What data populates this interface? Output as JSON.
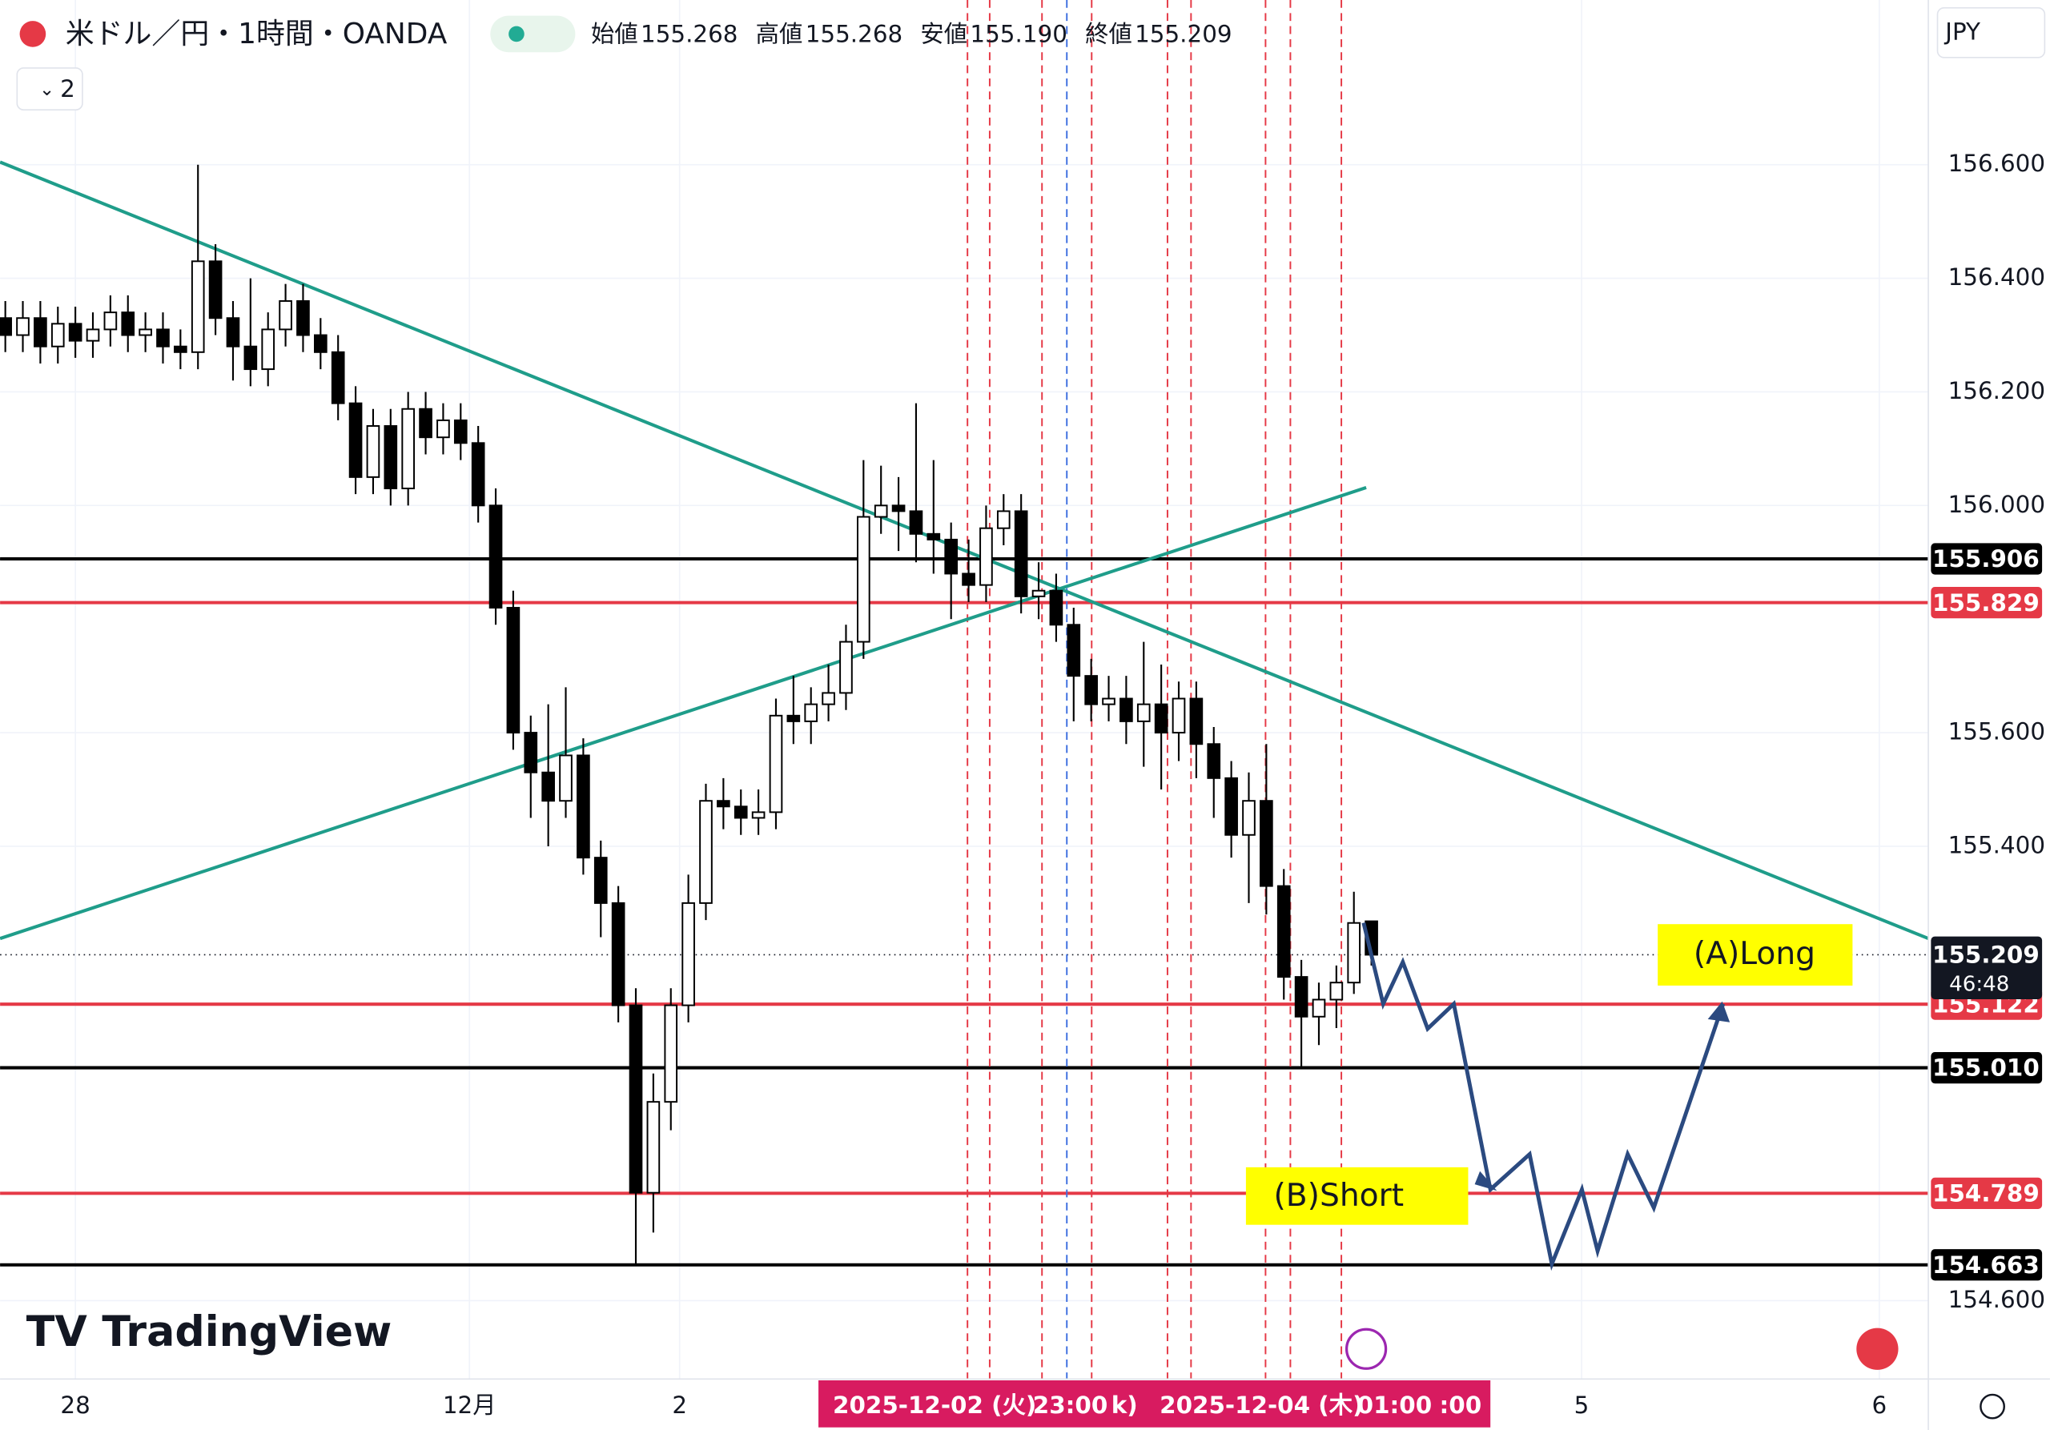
{
  "header": {
    "symbol": "米ドル／円・1時間・OANDA",
    "collapse": "2",
    "ohlc": [
      {
        "label": "始値",
        "value": "155.268"
      },
      {
        "label": "高値",
        "value": "155.268"
      },
      {
        "label": "安値",
        "value": "155.190"
      },
      {
        "label": "終値",
        "value": "155.209"
      }
    ]
  },
  "chart_data": {
    "type": "candlestick",
    "currency": "JPY",
    "watermark": "TradingView",
    "x": [
      0,
      2,
      4,
      6,
      8,
      10,
      12,
      14,
      16,
      18,
      20,
      22,
      24,
      26,
      28,
      30,
      32,
      34,
      36,
      38,
      40,
      42,
      44,
      46,
      48,
      50,
      52,
      54,
      56,
      58,
      60,
      62,
      64,
      66,
      68,
      70,
      72,
      74,
      76,
      78,
      80,
      82,
      84,
      86,
      88,
      90,
      92,
      94,
      96,
      98,
      100,
      102,
      104,
      106,
      108,
      110,
      112,
      114,
      116,
      118,
      120,
      122,
      124,
      126,
      128,
      130,
      132,
      134,
      136,
      138,
      140,
      142,
      144,
      146,
      148,
      150,
      152,
      154,
      156
    ],
    "open": [
      156.33,
      156.3,
      156.33,
      156.28,
      156.32,
      156.29,
      156.31,
      156.34,
      156.3,
      156.31,
      156.28,
      156.27,
      156.43,
      156.33,
      156.28,
      156.24,
      156.31,
      156.36,
      156.3,
      156.27,
      156.18,
      156.05,
      156.14,
      156.03,
      156.17,
      156.12,
      156.15,
      156.11,
      156.0,
      155.82,
      155.6,
      155.53,
      155.48,
      155.56,
      155.38,
      155.3,
      155.12,
      154.79,
      154.95,
      155.12,
      155.3,
      155.48,
      155.47,
      155.45,
      155.46,
      155.63,
      155.62,
      155.65,
      155.67,
      155.76,
      155.98,
      156.0,
      155.99,
      155.95,
      155.94,
      155.88,
      155.86,
      155.96,
      155.99,
      155.84,
      155.85,
      155.79,
      155.7,
      155.65,
      155.66,
      155.62,
      155.65,
      155.6,
      155.66,
      155.58,
      155.52,
      155.42,
      155.48,
      155.33,
      155.17,
      155.1,
      155.13,
      155.16,
      155.268
    ],
    "high": [
      156.36,
      156.36,
      156.36,
      156.35,
      156.35,
      156.34,
      156.37,
      156.37,
      156.34,
      156.34,
      156.31,
      156.6,
      156.46,
      156.36,
      156.4,
      156.34,
      156.39,
      156.39,
      156.33,
      156.3,
      156.21,
      156.17,
      156.17,
      156.2,
      156.2,
      156.18,
      156.18,
      156.14,
      156.03,
      155.85,
      155.63,
      155.65,
      155.68,
      155.59,
      155.41,
      155.33,
      155.15,
      155.0,
      155.15,
      155.35,
      155.51,
      155.52,
      155.5,
      155.5,
      155.66,
      155.7,
      155.68,
      155.72,
      155.79,
      156.08,
      156.07,
      156.05,
      156.18,
      156.08,
      155.97,
      155.94,
      156.0,
      156.02,
      156.02,
      155.9,
      155.88,
      155.82,
      155.73,
      155.7,
      155.7,
      155.76,
      155.72,
      155.69,
      155.69,
      155.61,
      155.55,
      155.53,
      155.58,
      155.36,
      155.2,
      155.16,
      155.19,
      155.32,
      155.268
    ],
    "low": [
      156.27,
      156.27,
      156.25,
      156.25,
      156.26,
      156.26,
      156.28,
      156.27,
      156.27,
      156.25,
      156.24,
      156.24,
      156.3,
      156.22,
      156.21,
      156.21,
      156.28,
      156.27,
      156.24,
      156.15,
      156.02,
      156.02,
      156.0,
      156.0,
      156.09,
      156.09,
      156.08,
      155.97,
      155.79,
      155.57,
      155.45,
      155.4,
      155.45,
      155.35,
      155.24,
      155.09,
      154.663,
      154.72,
      154.9,
      155.09,
      155.27,
      155.43,
      155.42,
      155.42,
      155.43,
      155.58,
      155.58,
      155.62,
      155.64,
      155.73,
      155.95,
      155.92,
      155.9,
      155.88,
      155.8,
      155.83,
      155.83,
      155.93,
      155.81,
      155.8,
      155.76,
      155.62,
      155.62,
      155.62,
      155.58,
      155.54,
      155.5,
      155.55,
      155.52,
      155.45,
      155.38,
      155.3,
      155.28,
      155.13,
      155.01,
      155.05,
      155.08,
      155.14,
      155.19
    ],
    "close": [
      156.3,
      156.33,
      156.28,
      156.32,
      156.29,
      156.31,
      156.34,
      156.3,
      156.31,
      156.28,
      156.27,
      156.43,
      156.33,
      156.28,
      156.24,
      156.31,
      156.36,
      156.3,
      156.27,
      156.18,
      156.05,
      156.14,
      156.03,
      156.17,
      156.12,
      156.15,
      156.11,
      156.0,
      155.82,
      155.6,
      155.53,
      155.48,
      155.56,
      155.38,
      155.3,
      155.12,
      154.79,
      154.95,
      155.12,
      155.3,
      155.48,
      155.47,
      155.45,
      155.46,
      155.63,
      155.62,
      155.65,
      155.67,
      155.76,
      155.98,
      156.0,
      155.99,
      155.95,
      155.94,
      155.88,
      155.86,
      155.96,
      155.99,
      155.84,
      155.85,
      155.79,
      155.7,
      155.65,
      155.66,
      155.62,
      155.65,
      155.6,
      155.66,
      155.58,
      155.52,
      155.42,
      155.48,
      155.33,
      155.17,
      155.1,
      155.13,
      155.16,
      155.265,
      155.209
    ],
    "xlim": [
      -0.6,
      219.6
    ],
    "ylim": [
      154.462,
      156.89
    ],
    "xticks": [
      {
        "value": 8,
        "label": "28"
      },
      {
        "value": 53,
        "label": "12月"
      },
      {
        "value": 77,
        "label": "2"
      },
      {
        "value": 180,
        "label": "5"
      },
      {
        "value": 214,
        "label": "6"
      }
    ],
    "yticks": [
      {
        "value": 156.6,
        "label": "156.600"
      },
      {
        "value": 156.4,
        "label": "156.400"
      },
      {
        "value": 156.2,
        "label": "156.200"
      },
      {
        "value": 156.0,
        "label": "156.000"
      },
      {
        "value": 155.6,
        "label": "155.600"
      },
      {
        "value": 155.4,
        "label": "155.400"
      },
      {
        "value": 154.6,
        "label": "154.600"
      }
    ],
    "levels": [
      {
        "value": 155.906,
        "color": "#000000"
      },
      {
        "value": 155.829,
        "color": "#e53946"
      },
      {
        "value": 155.122,
        "color": "#e53946"
      },
      {
        "value": {
          "value": 155.01,
          "label": "155.010"
        },
        "color": "#000000"
      },
      {
        "value": 154.789,
        "color": "#e53946"
      },
      {
        "value": 154.663,
        "color": "#000000"
      }
    ],
    "current_price": 155.209,
    "countdown": "46:48",
    "annotations": [
      "(A)Long",
      "(B)Short"
    ],
    "crosshair_labels": [
      "2025-12-02 (火)",
      "23:00",
      "k)",
      "2025-12-04 (木)",
      "01:00",
      ":00"
    ]
  }
}
